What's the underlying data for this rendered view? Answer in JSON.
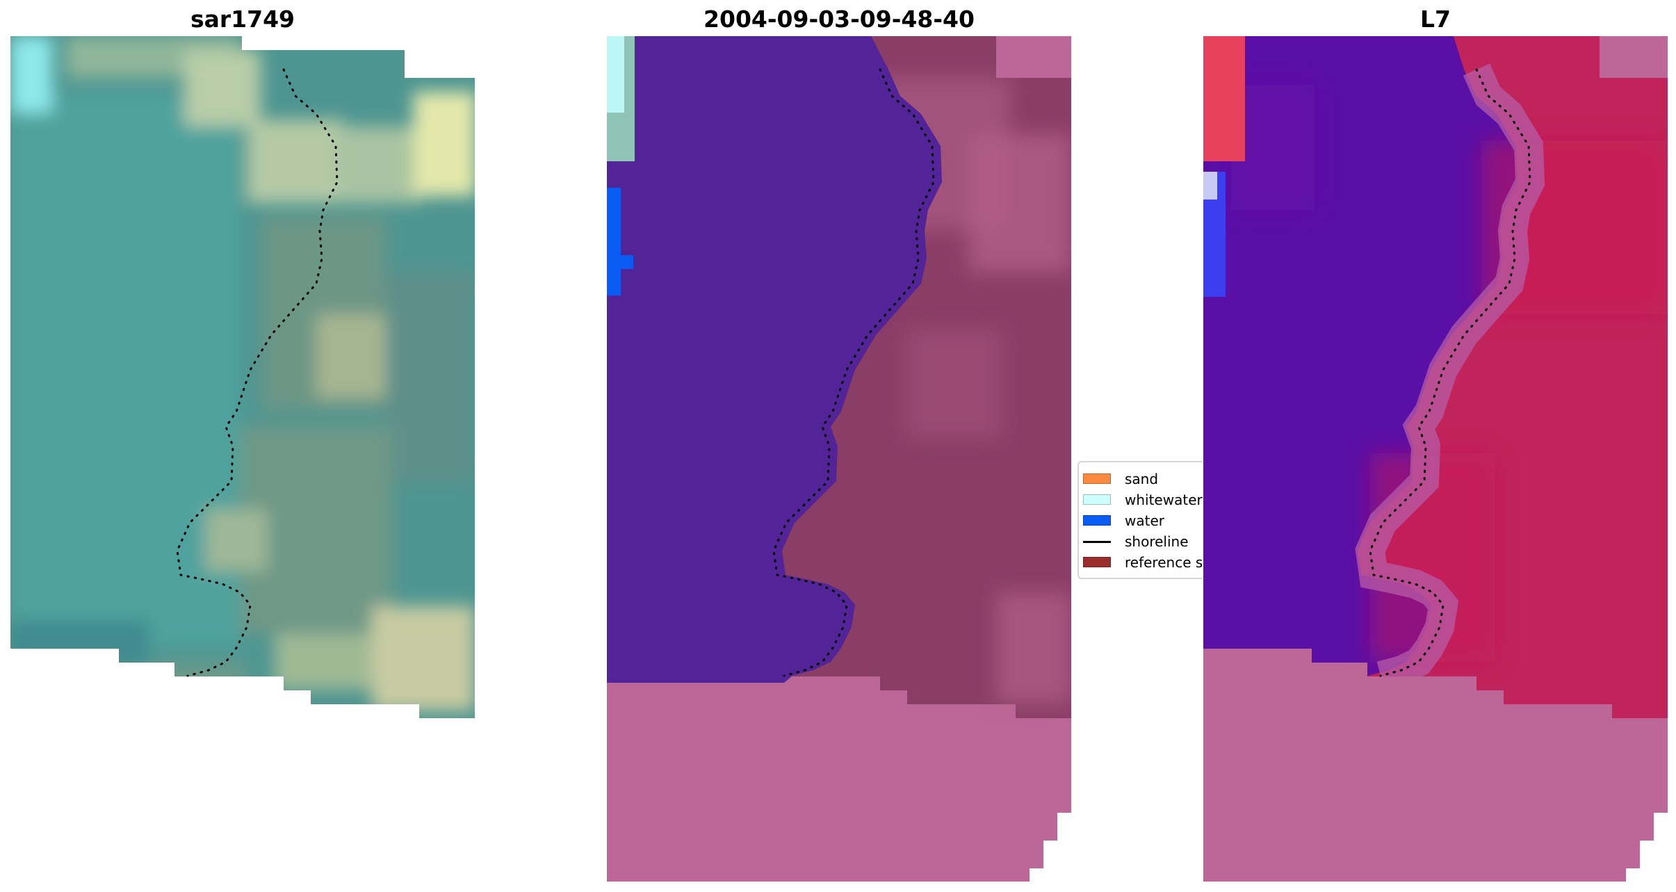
{
  "panels": [
    {
      "title": "sar1749"
    },
    {
      "title": "2004-09-03-09-48-40"
    },
    {
      "title": "L7"
    }
  ],
  "legend": {
    "items": [
      {
        "label": "sand",
        "color": "#fb8a3f",
        "kind": "patch"
      },
      {
        "label": "whitewater",
        "color": "#ccffff",
        "kind": "patch"
      },
      {
        "label": "water",
        "color": "#0a5cf5",
        "kind": "patch"
      },
      {
        "label": "shoreline",
        "color": "#000000",
        "kind": "line"
      },
      {
        "label": "reference shoreline",
        "color": "#9b2d2d",
        "kind": "patch"
      }
    ]
  },
  "colors": {
    "nodata": "#bc6797",
    "water_class": "#532498",
    "shoreline_dots": "#000000"
  }
}
